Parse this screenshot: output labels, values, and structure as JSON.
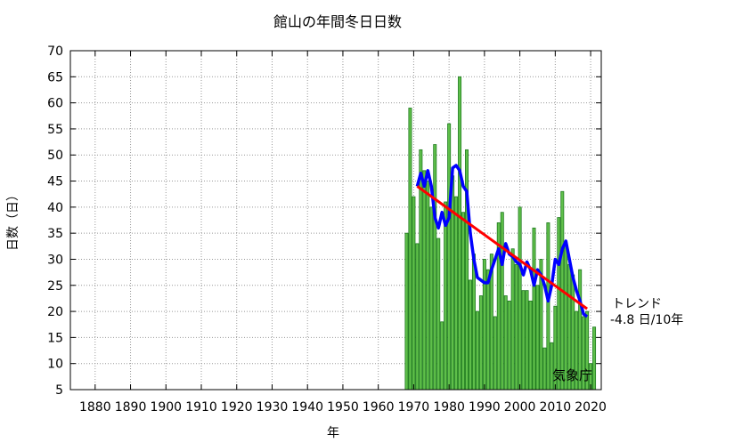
{
  "chart_data": {
    "type": "bar",
    "title": "館山の年間冬日日数",
    "xlabel": "年",
    "ylabel": "日数（日）",
    "xlim": [
      1873,
      2023
    ],
    "ylim": [
      5,
      70
    ],
    "grid": true,
    "x_ticks": [
      1880,
      1890,
      1900,
      1910,
      1920,
      1930,
      1940,
      1950,
      1960,
      1970,
      1980,
      1990,
      2000,
      2010,
      2020
    ],
    "x_tick_labels": [
      "1880",
      "1890",
      "1900",
      "1910",
      "1920",
      "1930",
      "1940",
      "1950",
      "1960",
      "1970",
      "1980",
      "1990",
      "2000",
      "2010",
      "2020"
    ],
    "y_ticks": [
      5,
      10,
      15,
      20,
      25,
      30,
      35,
      40,
      45,
      50,
      55,
      60,
      65,
      70
    ],
    "y_tick_labels": [
      "5",
      "10",
      "15",
      "20",
      "25",
      "30",
      "35",
      "40",
      "45",
      "50",
      "55",
      "60",
      "65",
      "70"
    ],
    "x": [
      1968,
      1969,
      1970,
      1971,
      1972,
      1973,
      1974,
      1975,
      1976,
      1977,
      1978,
      1979,
      1980,
      1981,
      1982,
      1983,
      1984,
      1985,
      1986,
      1987,
      1988,
      1989,
      1990,
      1991,
      1992,
      1993,
      1994,
      1995,
      1996,
      1997,
      1998,
      1999,
      2000,
      2001,
      2002,
      2003,
      2004,
      2005,
      2006,
      2007,
      2008,
      2009,
      2010,
      2011,
      2012,
      2013,
      2014,
      2015,
      2016,
      2017,
      2018,
      2019,
      2020,
      2021
    ],
    "values": [
      35,
      59,
      42,
      33,
      51,
      47,
      45,
      40,
      52,
      34,
      18,
      41,
      56,
      46,
      42,
      65,
      39,
      51,
      26,
      31,
      20,
      23,
      30,
      28,
      31,
      19,
      37,
      39,
      23,
      22,
      32,
      29,
      40,
      24,
      24,
      22,
      36,
      25,
      30,
      13,
      37,
      14,
      21,
      38,
      43,
      33,
      29,
      27,
      20,
      28,
      19,
      20,
      10,
      17
    ],
    "moving_average": {
      "x": [
        1971,
        1972,
        1973,
        1974,
        1975,
        1976,
        1977,
        1978,
        1979,
        1980,
        1981,
        1982,
        1983,
        1984,
        1985,
        1986,
        1987,
        1988,
        1989,
        1990,
        1991,
        1992,
        1993,
        1994,
        1995,
        1996,
        1997,
        1998,
        1999,
        2000,
        2001,
        2002,
        2003,
        2004,
        2005,
        2006,
        2007,
        2008,
        2009,
        2010,
        2011,
        2012,
        2013,
        2014,
        2015,
        2016,
        2017,
        2018,
        2019
      ],
      "values": [
        44,
        46.5,
        44,
        47,
        44,
        38,
        36,
        39,
        36.5,
        38,
        47.5,
        48,
        47,
        44,
        43,
        35,
        30,
        26.5,
        26,
        25.5,
        25.5,
        28,
        30,
        32,
        29,
        33,
        31,
        30.5,
        29.5,
        29,
        27,
        29.5,
        28,
        25,
        28,
        27,
        25,
        22,
        25,
        30,
        29,
        32,
        33.5,
        30,
        26.5,
        24,
        22,
        19.5,
        19
      ]
    },
    "trend": {
      "x": [
        1971,
        2019
      ],
      "y": [
        44,
        20.5
      ]
    },
    "colors": {
      "bar_fill": "#5fbf4a",
      "bar_stroke": "#1f7a1f",
      "moving_average": "#0000ff",
      "trend": "#ff0000"
    },
    "annotation": {
      "line1": "トレンド",
      "line2": "-4.8 日/10年"
    },
    "source": "気象庁"
  }
}
